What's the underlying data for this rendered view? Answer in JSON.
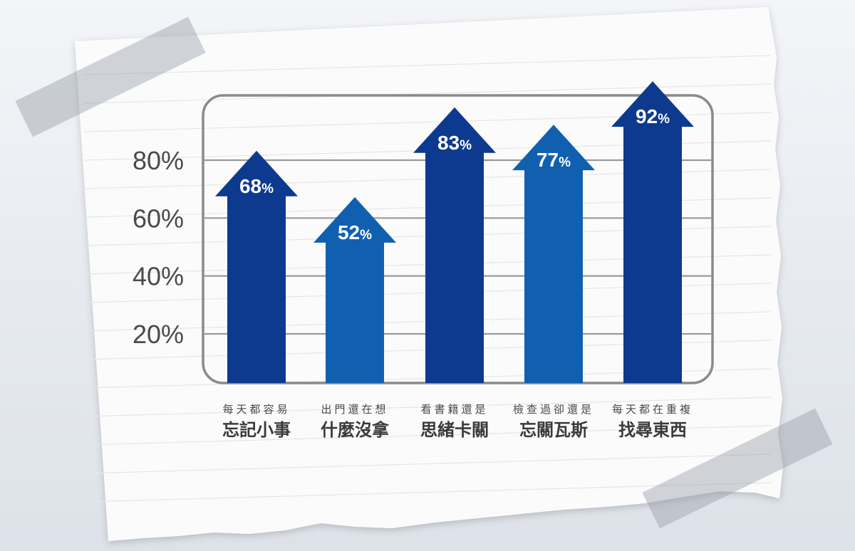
{
  "chart_data": {
    "type": "bar",
    "y_ticks": [
      "20%",
      "40%",
      "60%",
      "80%"
    ],
    "ylim": [
      0,
      100
    ],
    "grid": true,
    "categories": [
      {
        "line1": "每天都容易",
        "line2": "忘記小事",
        "value": 68,
        "label": "68",
        "unit": "%"
      },
      {
        "line1": "出門還在想",
        "line2": "什麼沒拿",
        "value": 52,
        "label": "52",
        "unit": "%"
      },
      {
        "line1": "看書籍還是",
        "line2": "思緒卡關",
        "value": 83,
        "label": "83",
        "unit": "%"
      },
      {
        "line1": "檢查過卻還是",
        "line2": "忘關瓦斯",
        "value": 77,
        "label": "77",
        "unit": "%"
      },
      {
        "line1": "每天都在重複",
        "line2": "找尋東西",
        "value": 92,
        "label": "92",
        "unit": "%"
      }
    ]
  },
  "colors": {
    "dark_bar": "#0d3a8e",
    "light_bar": "#1160b0",
    "frame": "#8a8a8a",
    "text": "#4a4a4a",
    "label": "#ffffff"
  }
}
